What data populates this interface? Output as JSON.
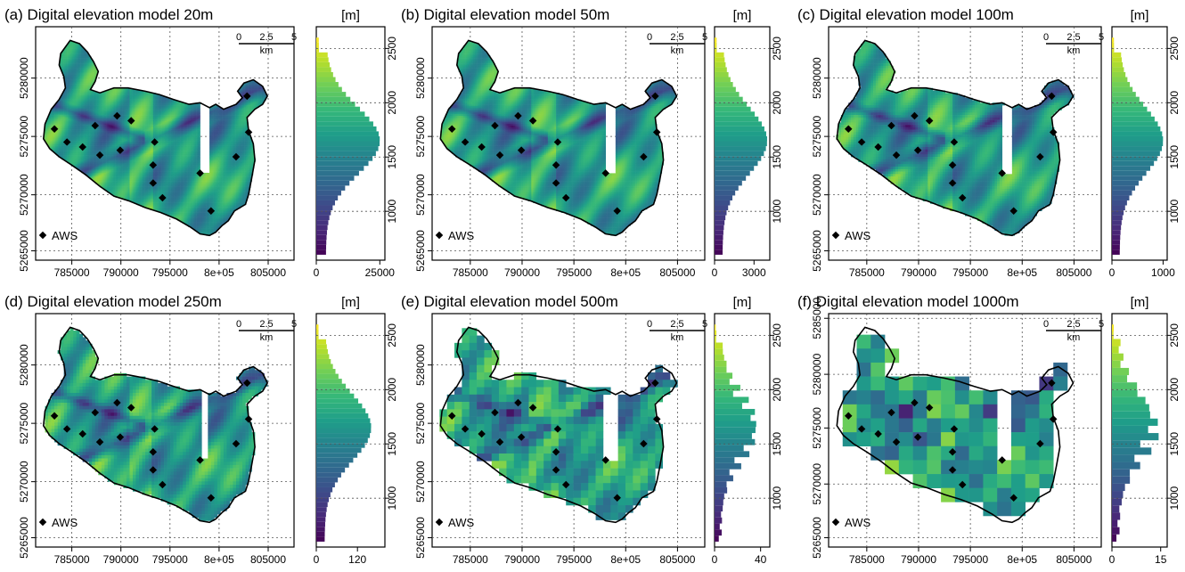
{
  "figure": {
    "colormap": [
      "#440154",
      "#482878",
      "#3e4a89",
      "#31688e",
      "#26828e",
      "#1f9e89",
      "#35b779",
      "#6ece58",
      "#b5de2b",
      "#fde725"
    ],
    "marker_color": "#000000",
    "legend_label": "AWS",
    "unit_label": "[m]"
  },
  "chart_data": [
    {
      "type": "map+histogram",
      "title": "(a) Digital elevation model 20m",
      "resolution_m": 20,
      "x_ticks": [
        "785000",
        "790000",
        "795000",
        "8e+05",
        "805000"
      ],
      "y_ticks": [
        "5265000",
        "5270000",
        "5275000",
        "5280000"
      ],
      "scale_bar": {
        "ticks": [
          "0",
          "2.5",
          "5"
        ],
        "unit": "km"
      },
      "histogram": {
        "orientation": "horizontal",
        "elevation_ticks": [
          "1000",
          "1500",
          "2000",
          "2500"
        ],
        "ylim": [
          550,
          2700
        ],
        "count_ticks": [
          "0",
          "25000"
        ],
        "count_max": 27000,
        "peak": 25000
      }
    },
    {
      "type": "map+histogram",
      "title": "(b) Digital elevation model 50m",
      "resolution_m": 50,
      "x_ticks": [
        "785000",
        "790000",
        "795000",
        "8e+05",
        "805000"
      ],
      "y_ticks": [
        "5265000",
        "5270000",
        "5275000",
        "5280000"
      ],
      "scale_bar": {
        "ticks": [
          "0",
          "2.5",
          "5"
        ],
        "unit": "km"
      },
      "histogram": {
        "orientation": "horizontal",
        "elevation_ticks": [
          "1000",
          "1500",
          "2000",
          "2500"
        ],
        "ylim": [
          550,
          2700
        ],
        "count_ticks": [
          "0",
          "3000"
        ],
        "count_max": 4200,
        "peak": 4000
      }
    },
    {
      "type": "map+histogram",
      "title": "(c) Digital elevation model 100m",
      "resolution_m": 100,
      "x_ticks": [
        "785000",
        "790000",
        "795000",
        "8e+05",
        "805000"
      ],
      "y_ticks": [
        "5265000",
        "5270000",
        "5275000",
        "5280000"
      ],
      "scale_bar": {
        "ticks": [
          "0",
          "2.5",
          "5"
        ],
        "unit": "km"
      },
      "histogram": {
        "orientation": "horizontal",
        "elevation_ticks": [
          "1000",
          "1500",
          "2000",
          "2500"
        ],
        "ylim": [
          550,
          2700
        ],
        "count_ticks": [
          "0",
          "1000"
        ],
        "count_max": 1080,
        "peak": 1000
      }
    },
    {
      "type": "map+histogram",
      "title": "(d) Digital elevation model 250m",
      "resolution_m": 250,
      "x_ticks": [
        "785000",
        "790000",
        "795000",
        "8e+05",
        "805000"
      ],
      "y_ticks": [
        "5265000",
        "5270000",
        "5275000",
        "5280000"
      ],
      "scale_bar": {
        "ticks": [
          "0",
          "2.5",
          "5"
        ],
        "unit": "km"
      },
      "histogram": {
        "orientation": "horizontal",
        "elevation_ticks": [
          "1000",
          "1500",
          "2000",
          "2500"
        ],
        "ylim": [
          550,
          2700
        ],
        "count_ticks": [
          "0",
          "120"
        ],
        "count_max": 200,
        "peak": 160
      }
    },
    {
      "type": "map+histogram",
      "title": "(e) Digital elevation model 500m",
      "resolution_m": 500,
      "x_ticks": [
        "785000",
        "790000",
        "795000",
        "8e+05",
        "805000"
      ],
      "y_ticks": [
        "5265000",
        "5270000",
        "5275000",
        "5280000"
      ],
      "scale_bar": {
        "ticks": [
          "0",
          "2.5",
          "5"
        ],
        "unit": "km"
      },
      "histogram": {
        "orientation": "horizontal",
        "elevation_ticks": [
          "1000",
          "1500",
          "2000",
          "2500"
        ],
        "ylim": [
          550,
          2700
        ],
        "count_ticks": [
          "0",
          "40"
        ],
        "count_max": 48,
        "peak": 40
      }
    },
    {
      "type": "map+histogram",
      "title": "(f) Digital elevation model 1000m",
      "resolution_m": 1000,
      "x_ticks": [
        "785000",
        "790000",
        "795000",
        "8e+05",
        "805000"
      ],
      "y_ticks": [
        "5265000",
        "5270000",
        "5275000",
        "5280000",
        "5285000"
      ],
      "scale_bar": {
        "ticks": [
          "0",
          "2.5",
          "5"
        ],
        "unit": "km"
      },
      "histogram": {
        "orientation": "horizontal",
        "elevation_ticks": [
          "1000",
          "1500",
          "2000",
          "2500"
        ],
        "ylim": [
          550,
          2700
        ],
        "count_ticks": [
          "0",
          "15"
        ],
        "count_max": 17,
        "peak": 15
      }
    }
  ]
}
